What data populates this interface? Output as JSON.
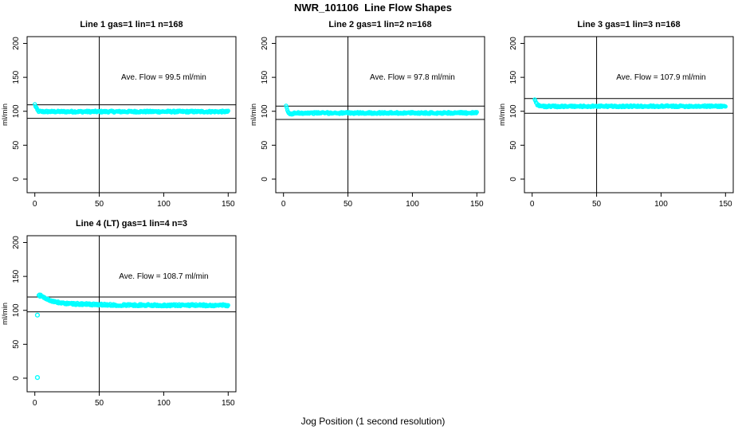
{
  "page": {
    "title": "NWR_101106  Line Flow Shapes",
    "xlabel": "Jog Position (1 second resolution)"
  },
  "colors": {
    "points": "#00FFFF",
    "axis": "#000000",
    "background": "#FFFFFF"
  },
  "chart_data": [
    {
      "type": "scatter",
      "title": "Line 1 gas=1 lin=1 n=168",
      "annotation": "Ave. Flow =  99.5  ml/min",
      "ave_flow": 99.5,
      "ylabel": "ml/min",
      "xticks": [
        0,
        50,
        100,
        150
      ],
      "yticks": [
        0,
        50,
        100,
        150,
        200
      ],
      "xlim": [
        -6,
        156
      ],
      "ylim": [
        -20,
        210
      ],
      "vline_x": 50,
      "hlines": [
        109.5,
        89.6
      ],
      "profile": [
        [
          0,
          110
        ],
        [
          1,
          105.5
        ],
        [
          2,
          101.5
        ],
        [
          3,
          100
        ],
        [
          5,
          99.6
        ],
        [
          10,
          99.5
        ],
        [
          150,
          99.5
        ]
      ],
      "noise": 1.3,
      "outliers": []
    },
    {
      "type": "scatter",
      "title": "Line 2 gas=1 lin=2 n=168",
      "annotation": "Ave. Flow =  97.8  ml/min",
      "ave_flow": 97.8,
      "ylabel": "ml/min",
      "xticks": [
        0,
        50,
        100,
        150
      ],
      "yticks": [
        0,
        50,
        100,
        150,
        200
      ],
      "xlim": [
        -6,
        156
      ],
      "ylim": [
        -20,
        210
      ],
      "vline_x": 50,
      "hlines": [
        107.6,
        88.0
      ],
      "profile": [
        [
          2,
          107
        ],
        [
          3,
          102
        ],
        [
          4,
          97.5
        ],
        [
          5,
          95.5
        ],
        [
          7,
          96.5
        ],
        [
          10,
          97.5
        ],
        [
          150,
          97.6
        ]
      ],
      "noise": 1.3,
      "outliers": []
    },
    {
      "type": "scatter",
      "title": "Line 3 gas=1 lin=3 n=168",
      "annotation": "Ave. Flow =  107.9  ml/min",
      "ave_flow": 107.9,
      "ylabel": "ml/min",
      "xticks": [
        0,
        50,
        100,
        150
      ],
      "yticks": [
        0,
        50,
        100,
        150,
        200
      ],
      "xlim": [
        -6,
        156
      ],
      "ylim": [
        -20,
        210
      ],
      "vline_x": 50,
      "hlines": [
        118.7,
        97.1
      ],
      "profile": [
        [
          2,
          118
        ],
        [
          3,
          113.5
        ],
        [
          4,
          110
        ],
        [
          6,
          107.8
        ],
        [
          10,
          107.2
        ],
        [
          150,
          107.5
        ]
      ],
      "noise": 1.2,
      "outliers": []
    },
    {
      "type": "scatter",
      "title": "Line 4 (LT) gas=1 lin=4 n=3",
      "annotation": "Ave. Flow =  108.7  ml/min",
      "ave_flow": 108.7,
      "ylabel": "ml/min",
      "xticks": [
        0,
        50,
        100,
        150
      ],
      "yticks": [
        0,
        50,
        100,
        150,
        200
      ],
      "xlim": [
        -6,
        156
      ],
      "ylim": [
        -20,
        210
      ],
      "vline_x": 50,
      "hlines": [
        119.6,
        97.8
      ],
      "profile": [
        [
          3,
          122
        ],
        [
          5,
          121.5
        ],
        [
          8,
          118
        ],
        [
          12,
          114.5
        ],
        [
          18,
          111.5
        ],
        [
          25,
          110
        ],
        [
          40,
          109
        ],
        [
          60,
          108
        ],
        [
          100,
          107.5
        ],
        [
          150,
          107.5
        ]
      ],
      "noise": 1.5,
      "outliers": [
        [
          2,
          93
        ],
        [
          2,
          1
        ]
      ]
    }
  ]
}
